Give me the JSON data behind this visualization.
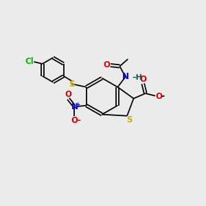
{
  "bg": "#ebebeb",
  "bond_color": "#000000",
  "ac": {
    "Cl": "#00bb00",
    "S": "#ccaa00",
    "N": "#0000dd",
    "O": "#dd0000"
  },
  "fs": 8.5,
  "lw": 1.3
}
